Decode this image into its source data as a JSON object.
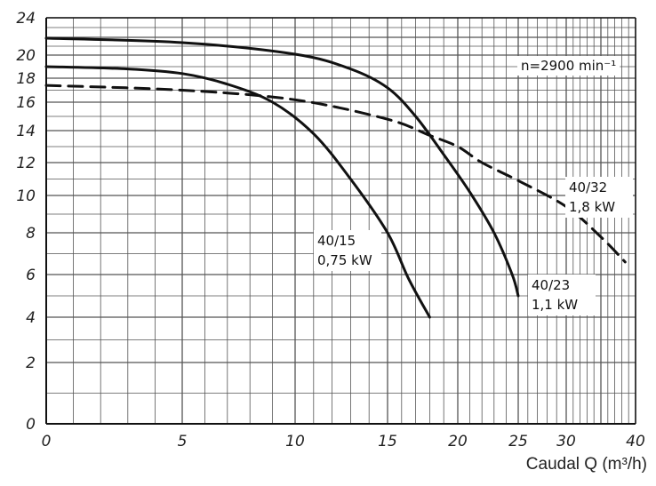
{
  "chart_data": {
    "type": "line",
    "title": "",
    "xlabel": "Caudal Q (m³/h)",
    "ylabel": "",
    "xlim": [
      0,
      40
    ],
    "ylim": [
      0,
      24
    ],
    "grid": true,
    "x_ticks": [
      "0",
      "5",
      "10",
      "15",
      "20",
      "25",
      "30",
      "40"
    ],
    "y_ticks": [
      "0",
      "2",
      "4",
      "6",
      "8",
      "10",
      "12",
      "14",
      "16",
      "18",
      "20",
      "24"
    ],
    "annotation": "n=2900 min⁻¹",
    "series": [
      {
        "name": "40/15 0,75 kW",
        "label_lines": [
          "40/15",
          "0,75 kW"
        ],
        "style": "solid",
        "points": [
          [
            0,
            19
          ],
          [
            3,
            18.8
          ],
          [
            5,
            18.4
          ],
          [
            7,
            17.5
          ],
          [
            9,
            16
          ],
          [
            11,
            13.8
          ],
          [
            13,
            11
          ],
          [
            15,
            8
          ],
          [
            16.5,
            5.8
          ],
          [
            18,
            4
          ]
        ]
      },
      {
        "name": "40/23 1,1 kW",
        "label_lines": [
          "40/23",
          "1,1 kW"
        ],
        "style": "solid",
        "points": [
          [
            0,
            21.9
          ],
          [
            5,
            21.4
          ],
          [
            10,
            20.1
          ],
          [
            13,
            18.8
          ],
          [
            15,
            17.2
          ],
          [
            17,
            15
          ],
          [
            19,
            12.5
          ],
          [
            21,
            10.2
          ],
          [
            23,
            8
          ],
          [
            24.5,
            6
          ],
          [
            25,
            5
          ]
        ]
      },
      {
        "name": "40/32 1,8 kW",
        "label_lines": [
          "40/32",
          "1,8 kW"
        ],
        "style": "dashed",
        "points": [
          [
            0,
            17.4
          ],
          [
            5,
            17
          ],
          [
            10,
            16.2
          ],
          [
            15,
            14.8
          ],
          [
            18,
            13.7
          ],
          [
            20,
            13
          ],
          [
            22,
            12
          ],
          [
            25,
            10.9
          ],
          [
            30,
            9.4
          ],
          [
            35,
            7.8
          ],
          [
            38.5,
            6.6
          ]
        ]
      }
    ]
  }
}
